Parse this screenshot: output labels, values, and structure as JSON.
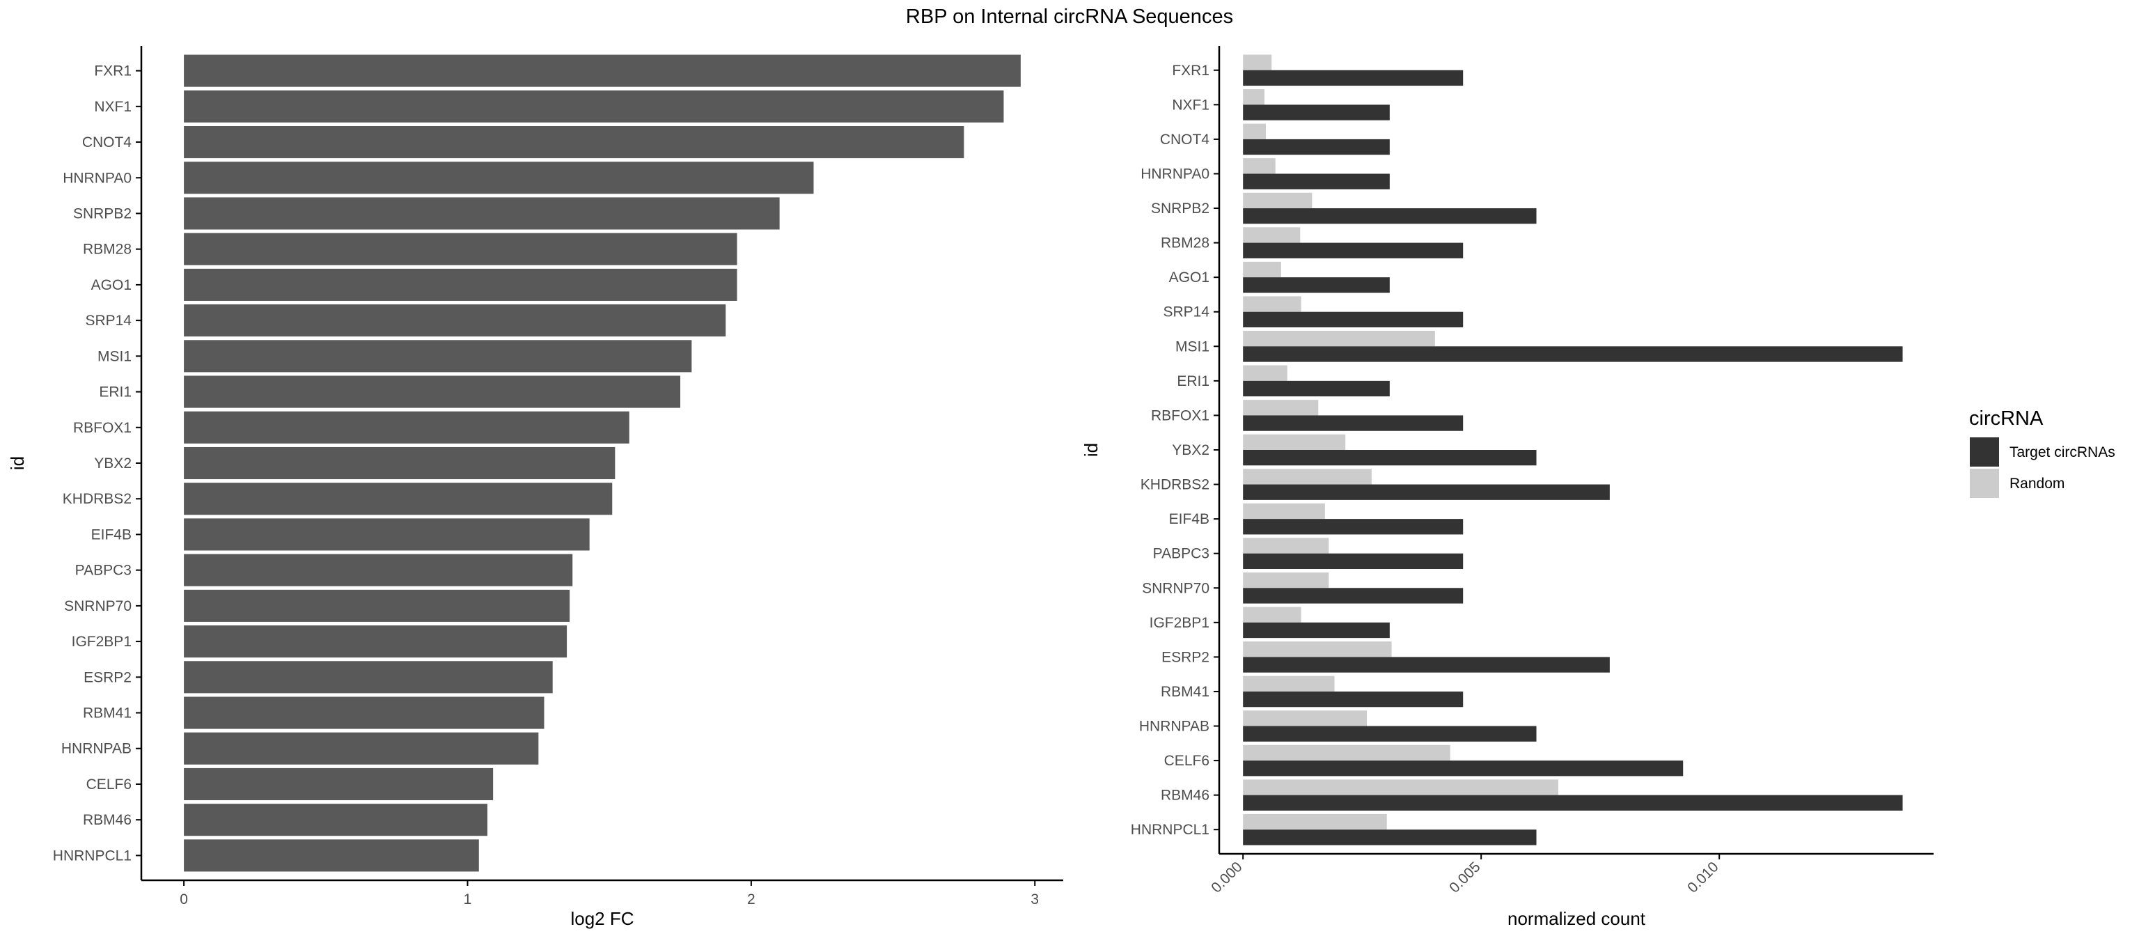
{
  "figure_title": "RBP on Internal circRNA Sequences",
  "colors": {
    "left_bar": "#595959",
    "target": "#333333",
    "random": "#cccccc",
    "axis": "#000000",
    "tick_text": "#4d4d4d"
  },
  "chart_data": [
    {
      "type": "bar",
      "orientation": "horizontal",
      "xlabel": "log2 FC",
      "ylabel": "id",
      "xlim": [
        -0.15,
        3.1
      ],
      "xticks": [
        0,
        1,
        2,
        3
      ],
      "categories": [
        "FXR1",
        "NXF1",
        "CNOT4",
        "HNRNPA0",
        "SNRPB2",
        "RBM28",
        "AGO1",
        "SRP14",
        "MSI1",
        "ERI1",
        "RBFOX1",
        "YBX2",
        "KHDRBS2",
        "EIF4B",
        "PABPC3",
        "SNRNP70",
        "IGF2BP1",
        "ESRP2",
        "RBM41",
        "HNRNPAB",
        "CELF6",
        "RBM46",
        "HNRNPCL1"
      ],
      "values": [
        2.95,
        2.89,
        2.75,
        2.22,
        2.1,
        1.95,
        1.95,
        1.91,
        1.79,
        1.75,
        1.57,
        1.52,
        1.51,
        1.43,
        1.37,
        1.36,
        1.35,
        1.3,
        1.27,
        1.25,
        1.09,
        1.07,
        1.04
      ],
      "grid": false
    },
    {
      "type": "bar",
      "orientation": "horizontal",
      "xlabel": "normalized count",
      "ylabel": "id",
      "xlim": [
        -0.0005,
        0.0145
      ],
      "xticks": [
        0.0,
        0.005,
        0.01
      ],
      "xtick_labels": [
        "0.000",
        "0.005",
        "0.010"
      ],
      "categories": [
        "FXR1",
        "NXF1",
        "CNOT4",
        "HNRNPA0",
        "SNRPB2",
        "RBM28",
        "AGO1",
        "SRP14",
        "MSI1",
        "ERI1",
        "RBFOX1",
        "YBX2",
        "KHDRBS2",
        "EIF4B",
        "PABPC3",
        "SNRNP70",
        "IGF2BP1",
        "ESRP2",
        "RBM41",
        "HNRNPAB",
        "CELF6",
        "RBM46",
        "HNRNPCL1"
      ],
      "legend_title": "circRNA",
      "legend_position": "right",
      "series": [
        {
          "name": "Target circRNAs",
          "values": [
            0.00462,
            0.00308,
            0.00308,
            0.00308,
            0.00616,
            0.00462,
            0.00308,
            0.00462,
            0.01385,
            0.00308,
            0.00462,
            0.00616,
            0.0077,
            0.00462,
            0.00462,
            0.00462,
            0.00308,
            0.0077,
            0.00462,
            0.00616,
            0.00924,
            0.01385,
            0.00616
          ]
        },
        {
          "name": "Random",
          "values": [
            0.0006,
            0.00045,
            0.00048,
            0.00068,
            0.00145,
            0.0012,
            0.0008,
            0.00122,
            0.00403,
            0.00093,
            0.00158,
            0.00215,
            0.0027,
            0.00172,
            0.0018,
            0.0018,
            0.00122,
            0.00312,
            0.00192,
            0.0026,
            0.00435,
            0.00662,
            0.00302
          ]
        }
      ],
      "grid": false
    }
  ]
}
